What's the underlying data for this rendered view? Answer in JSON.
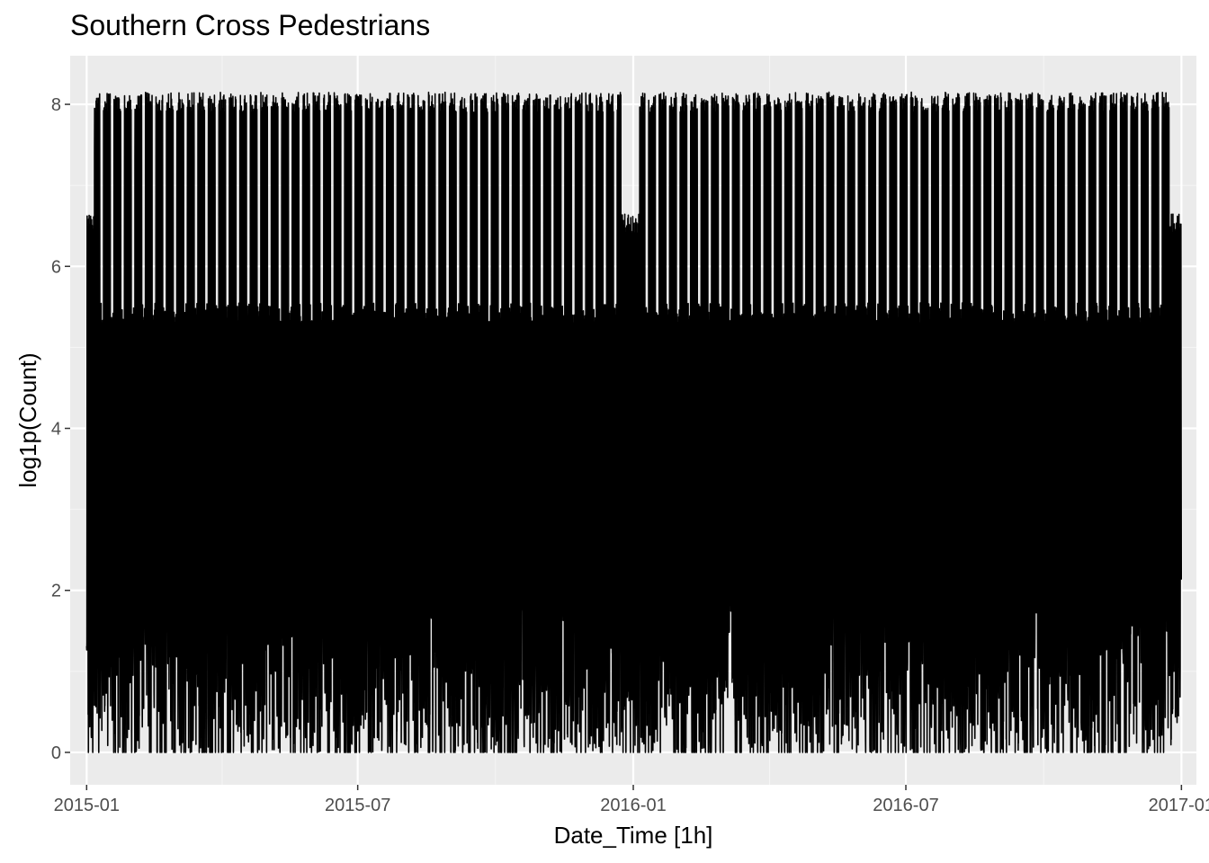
{
  "chart_data": {
    "type": "line",
    "title": "Southern Cross Pedestrians",
    "xlabel": "Date_Time [1h]",
    "ylabel": "log1p(Count)",
    "x_ticks": [
      "2015-01",
      "2015-07",
      "2016-01",
      "2016-07",
      "2017-01"
    ],
    "y_ticks": [
      0,
      2,
      4,
      6,
      8
    ],
    "xlim": [
      "2014-12-21",
      "2017-01-11"
    ],
    "ylim": [
      -0.4,
      8.6
    ],
    "grid": true,
    "legend": "none",
    "series": [
      {
        "x_range": [
          "2015-01-01",
          "2016-12-31"
        ],
        "daily_peak": {
          "weekday_level": 8.0,
          "weekend_level": 5.4,
          "holiday_dip_ranges": [
            [
              "2015-01-01",
              "2015-01-05"
            ],
            [
              "2015-12-24",
              "2016-01-04"
            ],
            [
              "2016-12-24",
              "2016-12-31"
            ]
          ],
          "holiday_level": 6.5
        },
        "night_low_range": [
          0,
          2.0
        ],
        "approx_max": 8.2,
        "approx_min": 0
      }
    ]
  },
  "colors": {
    "panel_background": "#ebebeb",
    "grid_major": "#ffffff",
    "grid_minor": "#f5f5f5",
    "line": "#000000",
    "tick_label": "#4d4d4d"
  }
}
